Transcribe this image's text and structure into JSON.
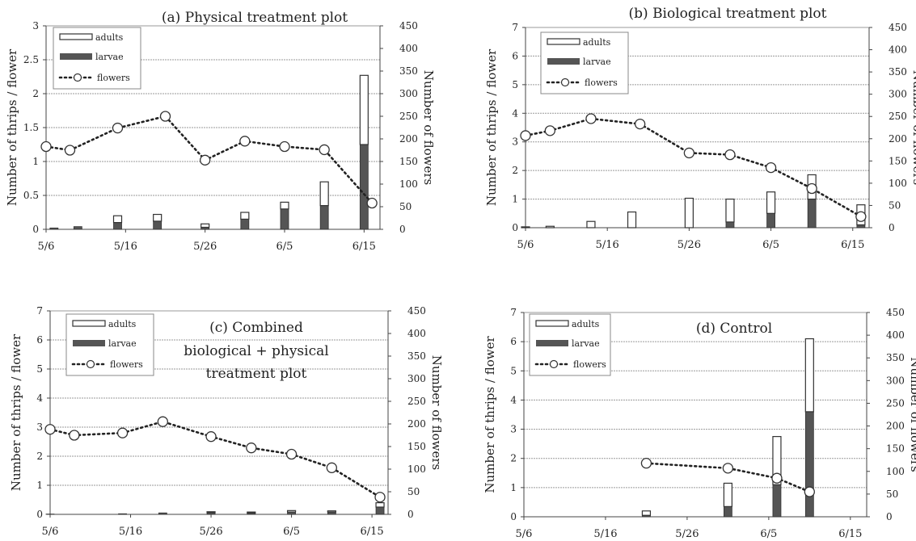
{
  "colors": {
    "adults": "#ffffff",
    "larvae": "#555555",
    "flower_line": "#222222",
    "grid": "#9a9a9a",
    "axis": "#444444"
  },
  "chart_data": [
    {
      "type": "bar",
      "title": "(a) Physical treatment plot",
      "ylabel": "Number of thrips / flower",
      "y2label": "Number of flowers",
      "ylim": [
        0,
        3
      ],
      "yticks": [
        "0",
        "0.5",
        "1",
        "1.5",
        "2",
        "2.5",
        "3"
      ],
      "y2lim": [
        0,
        450
      ],
      "y2ticks": [
        "0",
        "50",
        "100",
        "150",
        "200",
        "250",
        "300",
        "350",
        "400",
        "450"
      ],
      "xlim": [
        0,
        42
      ],
      "xticks": [
        {
          "label": "5/6",
          "x": 0
        },
        {
          "label": "5/16",
          "x": 10
        },
        {
          "label": "5/26",
          "x": 20
        },
        {
          "label": "6/5",
          "x": 30
        },
        {
          "label": "6/15",
          "x": 40
        }
      ],
      "legend": {
        "position": "top-left",
        "entries": [
          "adults",
          "larvae",
          "flowers"
        ]
      },
      "grid": true,
      "bars": [
        {
          "x": 1,
          "larvae": 0.02,
          "adults": 0.0
        },
        {
          "x": 4,
          "larvae": 0.04,
          "adults": 0.0
        },
        {
          "x": 9,
          "larvae": 0.1,
          "adults": 0.1
        },
        {
          "x": 14,
          "larvae": 0.12,
          "adults": 0.1
        },
        {
          "x": 20,
          "larvae": 0.03,
          "adults": 0.05
        },
        {
          "x": 25,
          "larvae": 0.15,
          "adults": 0.1
        },
        {
          "x": 30,
          "larvae": 0.3,
          "adults": 0.1
        },
        {
          "x": 35,
          "larvae": 0.35,
          "adults": 0.35
        },
        {
          "x": 40,
          "larvae": 1.25,
          "adults": 1.02
        }
      ],
      "flowers": [
        {
          "x": 0,
          "y": 183
        },
        {
          "x": 3,
          "y": 175
        },
        {
          "x": 9,
          "y": 224
        },
        {
          "x": 15,
          "y": 250
        },
        {
          "x": 20,
          "y": 153
        },
        {
          "x": 25,
          "y": 195
        },
        {
          "x": 30,
          "y": 183
        },
        {
          "x": 35,
          "y": 176
        },
        {
          "x": 41,
          "y": 58
        }
      ]
    },
    {
      "type": "bar",
      "title": "(b) Biological treatment plot",
      "ylabel": "Number of thrips / flower",
      "y2label": "Number of flowers",
      "ylim": [
        0,
        7
      ],
      "yticks": [
        "0",
        "1",
        "2",
        "3",
        "4",
        "5",
        "6",
        "7"
      ],
      "y2lim": [
        0,
        450
      ],
      "y2ticks": [
        "0",
        "50",
        "100",
        "150",
        "200",
        "250",
        "300",
        "350",
        "400",
        "450"
      ],
      "xlim": [
        0,
        42
      ],
      "xticks": [
        {
          "label": "5/6",
          "x": 0
        },
        {
          "label": "5/16",
          "x": 10
        },
        {
          "label": "5/26",
          "x": 20
        },
        {
          "label": "6/5",
          "x": 30
        },
        {
          "label": "6/15",
          "x": 40
        }
      ],
      "legend": {
        "position": "top-left",
        "entries": [
          "adults",
          "larvae",
          "flowers"
        ]
      },
      "grid": true,
      "bars": [
        {
          "x": 0,
          "larvae": 0.0,
          "adults": 0.03
        },
        {
          "x": 3,
          "larvae": 0.0,
          "adults": 0.05
        },
        {
          "x": 8,
          "larvae": 0.0,
          "adults": 0.22
        },
        {
          "x": 13,
          "larvae": 0.0,
          "adults": 0.55
        },
        {
          "x": 20,
          "larvae": 0.0,
          "adults": 1.03
        },
        {
          "x": 25,
          "larvae": 0.2,
          "adults": 0.8
        },
        {
          "x": 30,
          "larvae": 0.5,
          "adults": 0.75
        },
        {
          "x": 35,
          "larvae": 1.0,
          "adults": 0.85
        },
        {
          "x": 41,
          "larvae": 0.1,
          "adults": 0.7
        }
      ],
      "flowers": [
        {
          "x": 0,
          "y": 207
        },
        {
          "x": 3,
          "y": 218
        },
        {
          "x": 8,
          "y": 245
        },
        {
          "x": 14,
          "y": 233
        },
        {
          "x": 20,
          "y": 168
        },
        {
          "x": 25,
          "y": 164
        },
        {
          "x": 30,
          "y": 135
        },
        {
          "x": 35,
          "y": 88
        },
        {
          "x": 41,
          "y": 25
        }
      ]
    },
    {
      "type": "bar",
      "title": "(c) Combined biological + physical treatment plot",
      "title_lines": [
        "(c) Combined",
        "biological + physical",
        "treatment plot"
      ],
      "ylabel": "Number of thrips / flower",
      "y2label": "Number of flowers",
      "ylim": [
        0,
        7
      ],
      "yticks": [
        "0",
        "1",
        "2",
        "3",
        "4",
        "5",
        "6",
        "7"
      ],
      "y2lim": [
        0,
        450
      ],
      "y2ticks": [
        "0",
        "50",
        "100",
        "150",
        "200",
        "250",
        "300",
        "350",
        "400",
        "450"
      ],
      "xlim": [
        0,
        42
      ],
      "xticks": [
        {
          "label": "5/6",
          "x": 0
        },
        {
          "label": "5/16",
          "x": 10
        },
        {
          "label": "5/26",
          "x": 20
        },
        {
          "label": "6/5",
          "x": 30
        },
        {
          "label": "6/15",
          "x": 40
        }
      ],
      "legend": {
        "position": "top-left",
        "entries": [
          "adults",
          "larvae",
          "flowers"
        ]
      },
      "grid": true,
      "bars": [
        {
          "x": 0,
          "larvae": 0.01,
          "adults": 0.0
        },
        {
          "x": 9,
          "larvae": 0.02,
          "adults": 0.0
        },
        {
          "x": 14,
          "larvae": 0.05,
          "adults": 0.0
        },
        {
          "x": 20,
          "larvae": 0.06,
          "adults": 0.03
        },
        {
          "x": 25,
          "larvae": 0.05,
          "adults": 0.03
        },
        {
          "x": 30,
          "larvae": 0.08,
          "adults": 0.05
        },
        {
          "x": 35,
          "larvae": 0.08,
          "adults": 0.04
        },
        {
          "x": 41,
          "larvae": 0.25,
          "adults": 0.15
        }
      ],
      "flowers": [
        {
          "x": 0,
          "y": 188
        },
        {
          "x": 3,
          "y": 175
        },
        {
          "x": 9,
          "y": 180
        },
        {
          "x": 14,
          "y": 205
        },
        {
          "x": 20,
          "y": 172
        },
        {
          "x": 25,
          "y": 147
        },
        {
          "x": 30,
          "y": 133
        },
        {
          "x": 35,
          "y": 103
        },
        {
          "x": 41,
          "y": 38
        }
      ]
    },
    {
      "type": "bar",
      "title": "(d) Control",
      "ylabel": "Number of thrips / flower",
      "y2label": "Number of flowers",
      "ylim": [
        0,
        7
      ],
      "yticks": [
        "0",
        "1",
        "2",
        "3",
        "4",
        "5",
        "6",
        "7"
      ],
      "y2lim": [
        0,
        450
      ],
      "y2ticks": [
        "0",
        "50",
        "100",
        "150",
        "200",
        "250",
        "300",
        "350",
        "400",
        "450"
      ],
      "xlim": [
        0,
        42
      ],
      "xticks": [
        {
          "label": "5/6",
          "x": 0
        },
        {
          "label": "5/16",
          "x": 10
        },
        {
          "label": "5/26",
          "x": 20
        },
        {
          "label": "6/5",
          "x": 30
        },
        {
          "label": "6/15",
          "x": 40
        }
      ],
      "legend": {
        "position": "top-left",
        "entries": [
          "adults",
          "larvae",
          "flowers"
        ]
      },
      "grid": true,
      "bars": [
        {
          "x": 15,
          "larvae": 0.05,
          "adults": 0.15
        },
        {
          "x": 25,
          "larvae": 0.35,
          "adults": 0.8
        },
        {
          "x": 31,
          "larvae": 1.1,
          "adults": 1.65
        },
        {
          "x": 35,
          "larvae": 3.6,
          "adults": 2.5
        }
      ],
      "flowers": [
        {
          "x": 15,
          "y": 118
        },
        {
          "x": 25,
          "y": 107
        },
        {
          "x": 31,
          "y": 85
        },
        {
          "x": 35,
          "y": 55
        }
      ]
    }
  ]
}
